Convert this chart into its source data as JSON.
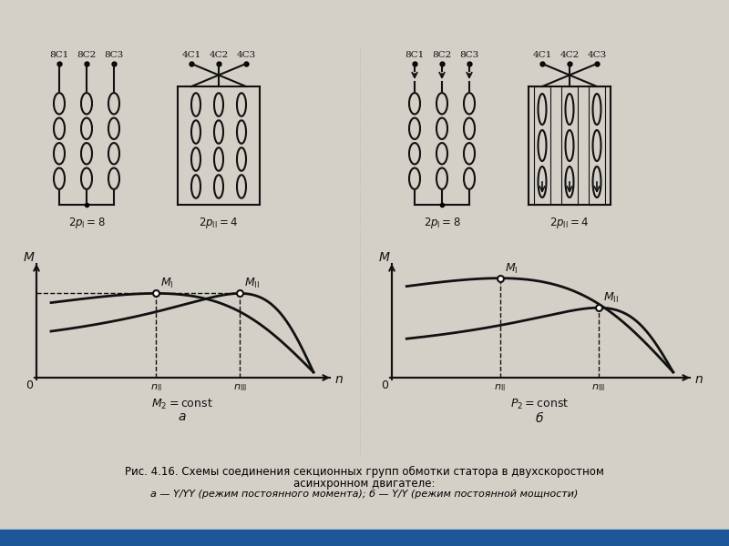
{
  "fig_w": 8.0,
  "fig_h": 6.0,
  "bg_color": "#d4d0c8",
  "panel_bg": "#e8e4dc",
  "blue_bar": "#1e5799",
  "line_color": "#111111",
  "labels_8C": [
    "8C1",
    "8C2",
    "8C3"
  ],
  "labels_4C": [
    "4C1",
    "4C2",
    "4C3"
  ],
  "caption_line1": "Рис. 4.16. Схемы соединения секционных групп обмотки статора в двухскоростном",
  "caption_line2": "асинхронном двигателе:",
  "caption_line3": "а — Y/YY (режим постоянного момента); б — Y/Y (режим постоянной мощности)"
}
